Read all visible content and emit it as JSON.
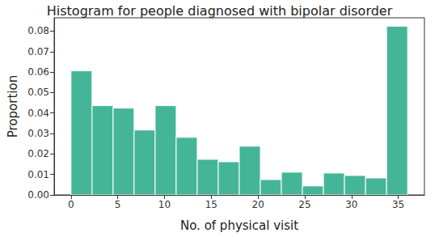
{
  "chart_data": {
    "type": "histogram",
    "title": "Histogram for people diagnosed with bipolar disorder",
    "x_label": "No. of physical visit",
    "y_label": "Proportion",
    "bins": [
      0,
      2.25,
      4.5,
      6.75,
      9,
      11.25,
      13.5,
      15.75,
      18,
      20.25,
      22.5,
      24.75,
      27,
      29.25,
      31.5,
      33.75,
      36
    ],
    "values": [
      0.0606,
      0.0436,
      0.0424,
      0.0317,
      0.0436,
      0.0281,
      0.0174,
      0.0162,
      0.0238,
      0.0075,
      0.0111,
      0.0044,
      0.0107,
      0.0095,
      0.0083,
      0.0824
    ],
    "color": "#44b697",
    "xlim": [
      -1.8,
      37.8
    ],
    "xticks": [
      0,
      5,
      10,
      15,
      20,
      25,
      30,
      35
    ],
    "ylim": [
      0,
      0.0865
    ],
    "yticks": [
      {
        "value": 0,
        "label": "0.00"
      },
      {
        "value": 0.01,
        "label": "0.01"
      },
      {
        "value": 0.02,
        "label": "0.02"
      },
      {
        "value": 0.03,
        "label": "0.03"
      },
      {
        "value": 0.04,
        "label": "0.04"
      },
      {
        "value": 0.05,
        "label": "0.05"
      },
      {
        "value": 0.06,
        "label": "0.06"
      },
      {
        "value": 0.07,
        "label": "0.07"
      },
      {
        "value": 0.08,
        "label": "0.08"
      }
    ],
    "grid": false
  }
}
